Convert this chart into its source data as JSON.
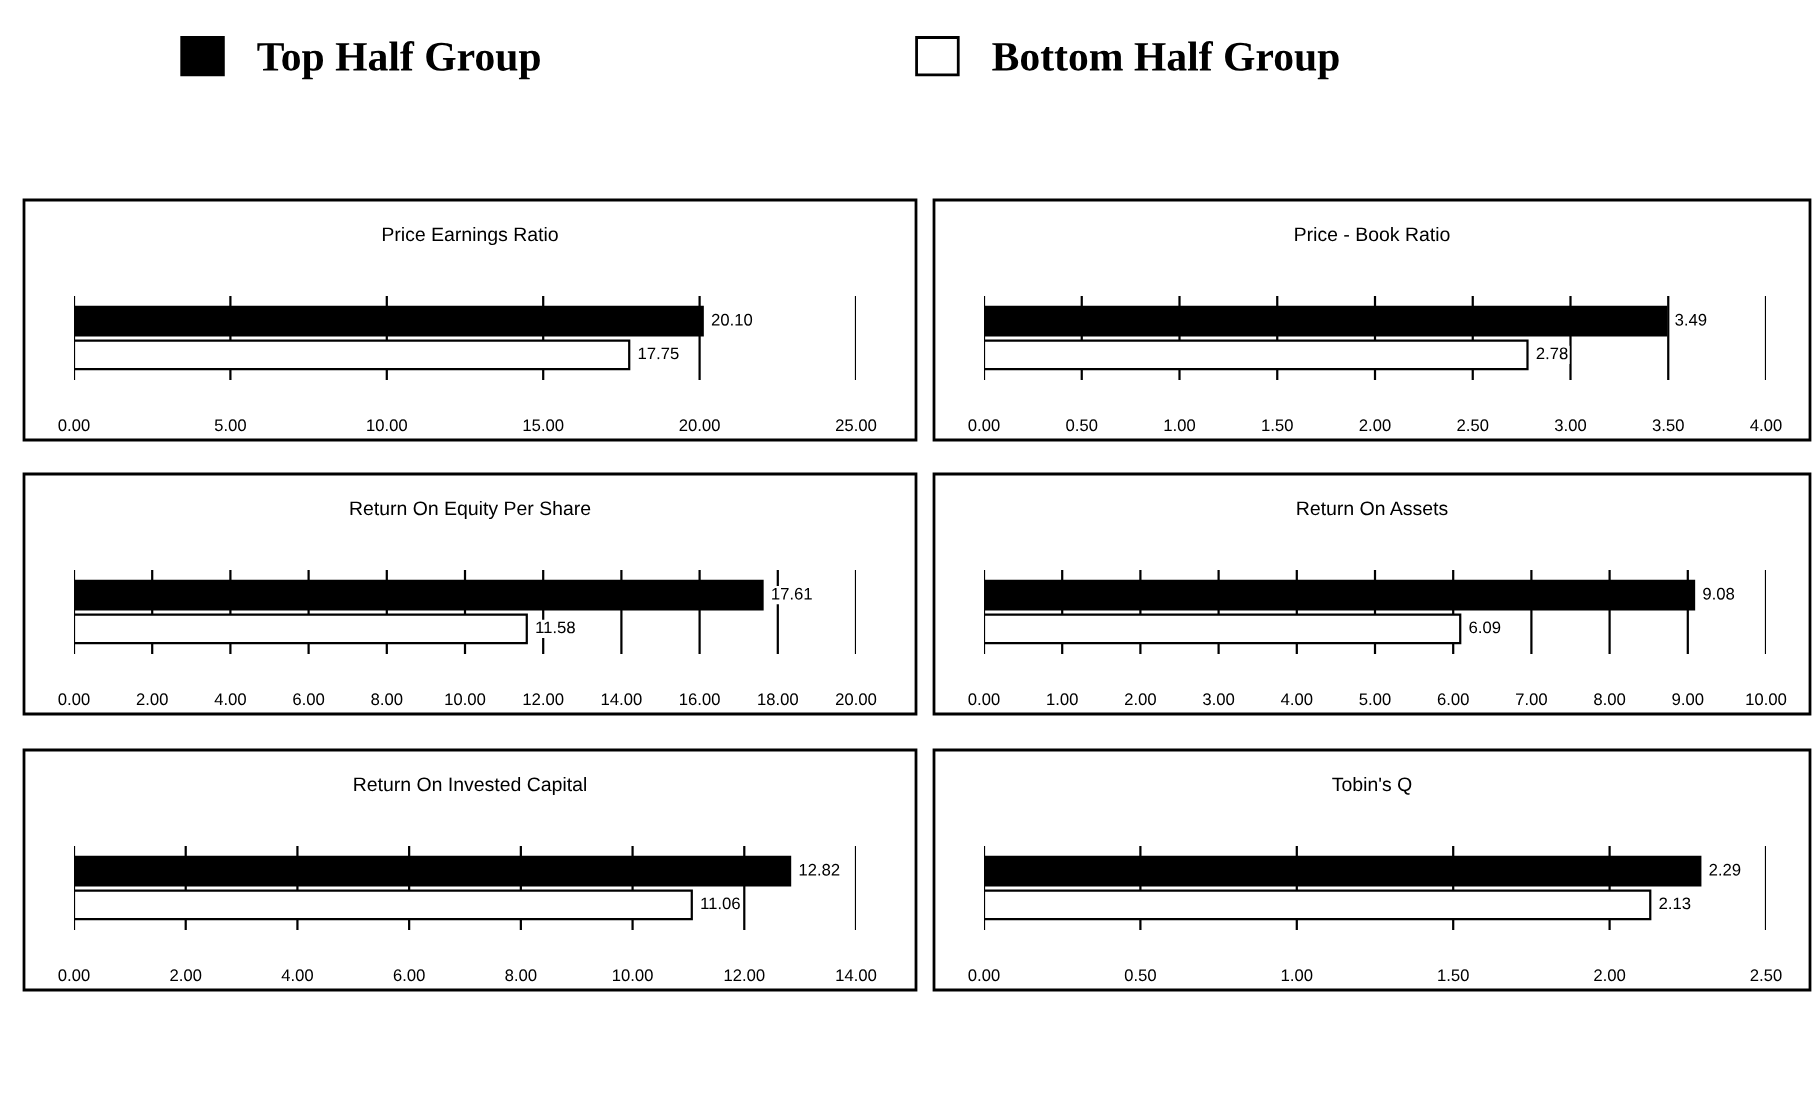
{
  "chart_data": [
    {
      "type": "bar",
      "orientation": "horizontal",
      "title": "Price Earnings Ratio",
      "categories": [
        null
      ],
      "legend": "top",
      "grid": "x",
      "xlim": [
        0,
        25
      ],
      "xticks": [
        {
          "value": 0,
          "label": "0.00"
        },
        {
          "value": 5,
          "label": "5.00"
        },
        {
          "value": 10,
          "label": "10.00"
        },
        {
          "value": 15,
          "label": "15.00"
        },
        {
          "value": 20,
          "label": "20.00"
        },
        {
          "value": 25,
          "label": "25.00"
        }
      ],
      "series": [
        {
          "name": "Top Half Group",
          "color": "#000000",
          "values": [
            20.1
          ],
          "value_labels": [
            "20.10"
          ]
        },
        {
          "name": "Bottom Half Group",
          "color": "#ffffff",
          "values": [
            17.75
          ],
          "value_labels": [
            "17.75"
          ]
        }
      ]
    },
    {
      "type": "bar",
      "orientation": "horizontal",
      "title": "Price - Book Ratio",
      "categories": [
        null
      ],
      "grid": "x",
      "xlim": [
        0,
        4
      ],
      "xticks": [
        {
          "value": 0,
          "label": "0.00"
        },
        {
          "value": 0.5,
          "label": "0.50"
        },
        {
          "value": 1,
          "label": "1.00"
        },
        {
          "value": 1.5,
          "label": "1.50"
        },
        {
          "value": 2,
          "label": "2.00"
        },
        {
          "value": 2.5,
          "label": "2.50"
        },
        {
          "value": 3,
          "label": "3.00"
        },
        {
          "value": 3.5,
          "label": "3.50"
        },
        {
          "value": 4,
          "label": "4.00"
        }
      ],
      "series": [
        {
          "color": "#000000",
          "values": [
            3.49
          ],
          "value_labels": [
            "3.49"
          ]
        },
        {
          "color": "#ffffff",
          "values": [
            2.78
          ],
          "value_labels": [
            "2.78"
          ]
        }
      ]
    },
    {
      "type": "bar",
      "orientation": "horizontal",
      "title": "Return On Equity Per Share",
      "categories": [
        null
      ],
      "grid": "x",
      "xlim": [
        0,
        20
      ],
      "xticks": [
        {
          "value": 0,
          "label": "0.00"
        },
        {
          "value": 2,
          "label": "2.00"
        },
        {
          "value": 4,
          "label": "4.00"
        },
        {
          "value": 6,
          "label": "6.00"
        },
        {
          "value": 8,
          "label": "8.00"
        },
        {
          "value": 10,
          "label": "10.00"
        },
        {
          "value": 12,
          "label": "12.00"
        },
        {
          "value": 14,
          "label": "14.00"
        },
        {
          "value": 16,
          "label": "16.00"
        },
        {
          "value": 18,
          "label": "18.00"
        },
        {
          "value": 20,
          "label": "20.00"
        }
      ],
      "series": [
        {
          "color": "#000000",
          "values": [
            17.61
          ],
          "value_labels": [
            "17.61"
          ]
        },
        {
          "color": "#ffffff",
          "values": [
            11.58
          ],
          "value_labels": [
            "11.58"
          ]
        }
      ]
    },
    {
      "type": "bar",
      "orientation": "horizontal",
      "title": "Return On Assets",
      "categories": [
        null
      ],
      "grid": "x",
      "xlim": [
        0,
        10
      ],
      "xticks": [
        {
          "value": 0,
          "label": "0.00"
        },
        {
          "value": 1,
          "label": "1.00"
        },
        {
          "value": 2,
          "label": "2.00"
        },
        {
          "value": 3,
          "label": "3.00"
        },
        {
          "value": 4,
          "label": "4.00"
        },
        {
          "value": 5,
          "label": "5.00"
        },
        {
          "value": 6,
          "label": "6.00"
        },
        {
          "value": 7,
          "label": "7.00"
        },
        {
          "value": 8,
          "label": "8.00"
        },
        {
          "value": 9,
          "label": "9.00"
        },
        {
          "value": 10,
          "label": "10.00"
        }
      ],
      "series": [
        {
          "color": "#000000",
          "values": [
            9.08
          ],
          "value_labels": [
            "9.08"
          ]
        },
        {
          "color": "#ffffff",
          "values": [
            6.09
          ],
          "value_labels": [
            "6.09"
          ]
        }
      ]
    },
    {
      "type": "bar",
      "orientation": "horizontal",
      "title": "Return On Invested Capital",
      "categories": [
        null
      ],
      "grid": "x",
      "xlim": [
        0,
        14
      ],
      "xticks": [
        {
          "value": 0,
          "label": "0.00"
        },
        {
          "value": 2,
          "label": "2.00"
        },
        {
          "value": 4,
          "label": "4.00"
        },
        {
          "value": 6,
          "label": "6.00"
        },
        {
          "value": 8,
          "label": "8.00"
        },
        {
          "value": 10,
          "label": "10.00"
        },
        {
          "value": 12,
          "label": "12.00"
        },
        {
          "value": 14,
          "label": "14.00"
        }
      ],
      "series": [
        {
          "color": "#000000",
          "values": [
            12.82
          ],
          "value_labels": [
            "12.82"
          ]
        },
        {
          "color": "#ffffff",
          "values": [
            11.06
          ],
          "value_labels": [
            "11.06"
          ]
        }
      ]
    },
    {
      "type": "bar",
      "orientation": "horizontal",
      "title": "Tobin's Q",
      "categories": [
        null
      ],
      "grid": "x",
      "xlim": [
        0,
        2.5
      ],
      "xticks": [
        {
          "value": 0,
          "label": "0.00"
        },
        {
          "value": 0.5,
          "label": "0.50"
        },
        {
          "value": 1,
          "label": "1.00"
        },
        {
          "value": 1.5,
          "label": "1.50"
        },
        {
          "value": 2,
          "label": "2.00"
        },
        {
          "value": 2.5,
          "label": "2.50"
        }
      ],
      "series": [
        {
          "color": "#000000",
          "values": [
            2.29
          ],
          "value_labels": [
            "2.29"
          ]
        },
        {
          "color": "#ffffff",
          "values": [
            2.13
          ],
          "value_labels": [
            "2.13"
          ]
        }
      ]
    }
  ]
}
